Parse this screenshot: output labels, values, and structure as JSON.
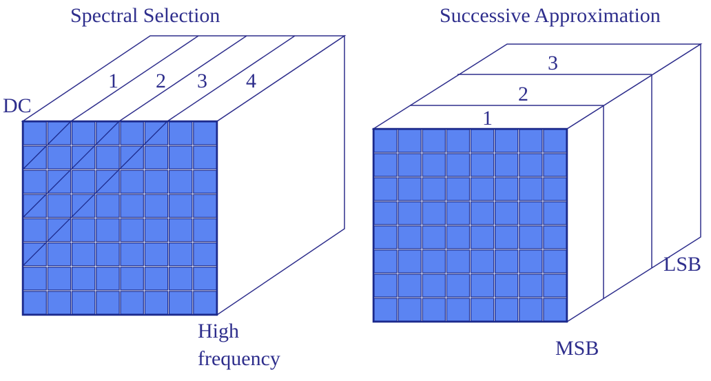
{
  "left_diagram": {
    "title": "Spectral Selection",
    "dc_label": "DC",
    "band_labels": [
      "1",
      "2",
      "3",
      "4"
    ],
    "bottom_label_line1": "High",
    "bottom_label_line2": "frequency"
  },
  "right_diagram": {
    "title": "Successive Approximation",
    "layer_labels": [
      "1",
      "2",
      "3"
    ],
    "lsb_label": "LSB",
    "msb_label": "MSB"
  },
  "colors": {
    "cell_fill": "#5b84f2",
    "grid_line": "#1c2a8c",
    "text": "#2e2e8c",
    "edge": "#2e2e8c"
  }
}
